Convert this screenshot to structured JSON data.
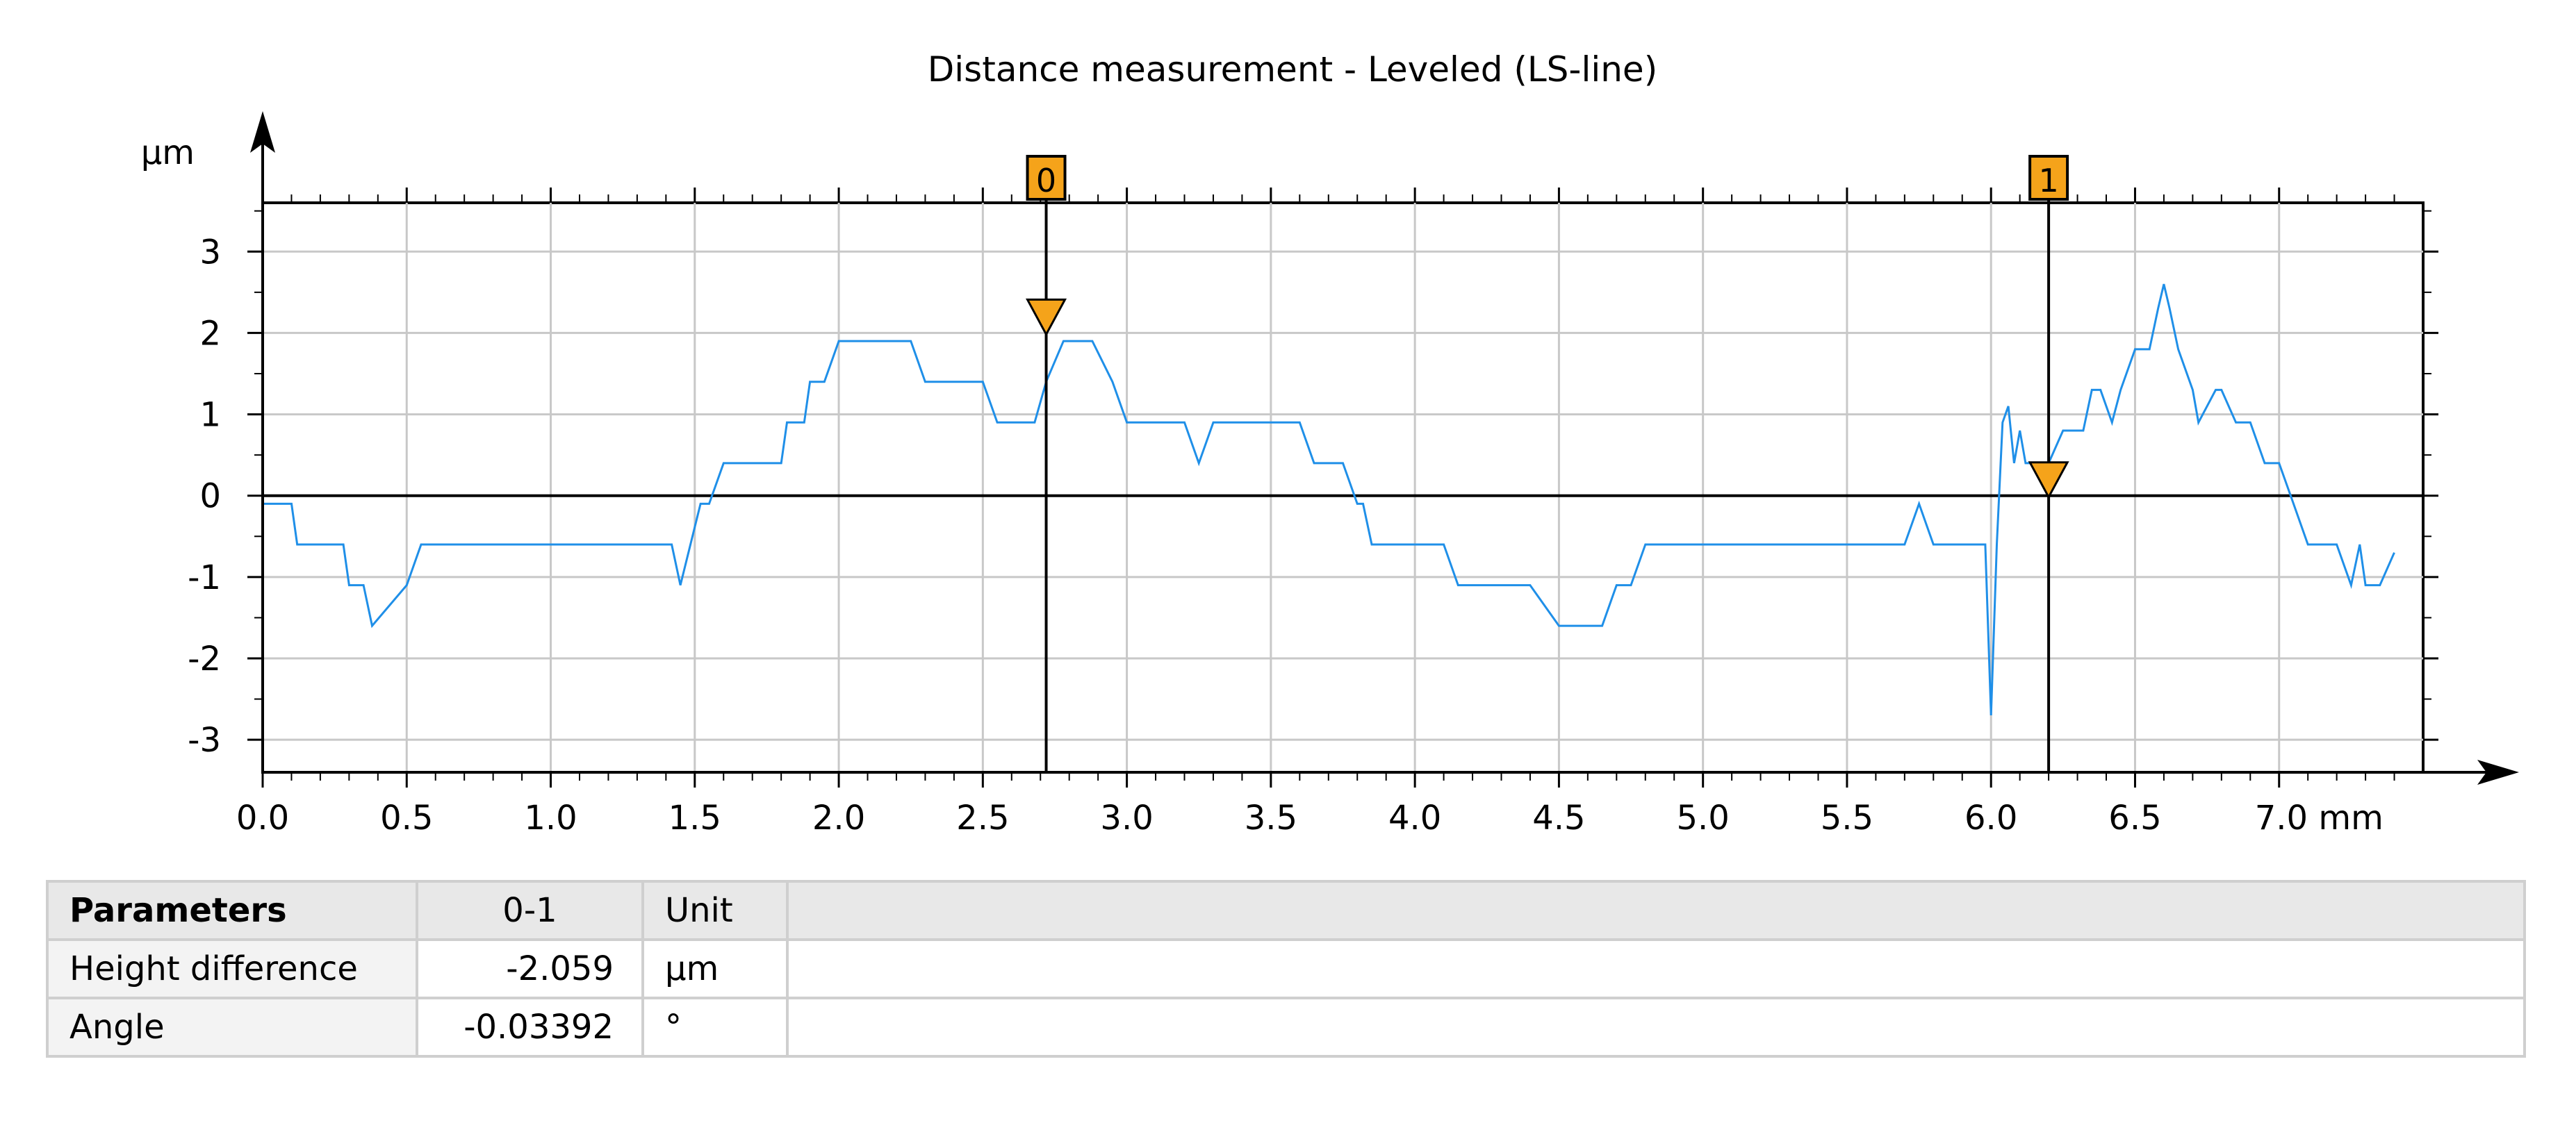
{
  "chart_data": {
    "type": "line",
    "title": "Distance measurement - Leveled (LS-line)",
    "xlabel": "mm",
    "ylabel": "µm",
    "xlim": [
      0.0,
      7.5
    ],
    "ylim": [
      -3.4,
      3.6
    ],
    "x_ticks": [
      0.0,
      0.5,
      1.0,
      1.5,
      2.0,
      2.5,
      3.0,
      3.5,
      4.0,
      4.5,
      5.0,
      5.5,
      6.0,
      6.5,
      7.0
    ],
    "x_tick_labels": [
      "0.0",
      "0.5",
      "1.0",
      "1.5",
      "2.0",
      "2.5",
      "3.0",
      "3.5",
      "4.0",
      "4.5",
      "5.0",
      "5.5",
      "6.0",
      "6.5",
      "7.0 mm"
    ],
    "y_ticks": [
      3,
      2,
      1,
      0,
      -1,
      -2,
      -3
    ],
    "y_tick_labels": [
      "3",
      "2",
      "1",
      "0",
      "-1",
      "-2",
      "-3"
    ],
    "grid": true,
    "series": [
      {
        "color": "#1f8fe8",
        "x": [
          0.0,
          0.1,
          0.12,
          0.28,
          0.3,
          0.35,
          0.38,
          0.5,
          0.55,
          0.7,
          1.0,
          1.2,
          1.38,
          1.42,
          1.45,
          1.52,
          1.55,
          1.6,
          1.7,
          1.8,
          1.82,
          1.88,
          1.9,
          1.95,
          2.0,
          2.1,
          2.25,
          2.3,
          2.45,
          2.5,
          2.55,
          2.62,
          2.68,
          2.72,
          2.78,
          2.82,
          2.88,
          2.95,
          3.0,
          3.1,
          3.2,
          3.25,
          3.3,
          3.35,
          3.5,
          3.6,
          3.65,
          3.75,
          3.8,
          3.82,
          3.85,
          3.9,
          4.0,
          4.1,
          4.15,
          4.25,
          4.3,
          4.4,
          4.5,
          4.55,
          4.6,
          4.65,
          4.7,
          4.75,
          4.8,
          4.9,
          5.0,
          5.1,
          5.2,
          5.3,
          5.4,
          5.5,
          5.6,
          5.7,
          5.75,
          5.8,
          5.9,
          5.98,
          6.0,
          6.02,
          6.04,
          6.06,
          6.08,
          6.1,
          6.12,
          6.15,
          6.2,
          6.25,
          6.3,
          6.32,
          6.35,
          6.38,
          6.42,
          6.45,
          6.5,
          6.55,
          6.58,
          6.6,
          6.62,
          6.65,
          6.7,
          6.72,
          6.78,
          6.8,
          6.85,
          6.88,
          6.9,
          6.95,
          7.0,
          7.05,
          7.1,
          7.15,
          7.2,
          7.25,
          7.28,
          7.3,
          7.35,
          7.4
        ],
        "y": [
          -0.1,
          -0.1,
          -0.6,
          -0.6,
          -1.1,
          -1.1,
          -1.6,
          -1.1,
          -0.6,
          -0.6,
          -0.6,
          -0.6,
          -0.6,
          -0.6,
          -1.1,
          -0.1,
          -0.1,
          0.4,
          0.4,
          0.4,
          0.9,
          0.9,
          1.4,
          1.4,
          1.9,
          1.9,
          1.9,
          1.4,
          1.4,
          1.4,
          0.9,
          0.9,
          0.9,
          1.4,
          1.9,
          1.9,
          1.9,
          1.4,
          0.9,
          0.9,
          0.9,
          0.4,
          0.9,
          0.9,
          0.9,
          0.9,
          0.4,
          0.4,
          -0.1,
          -0.1,
          -0.6,
          -0.6,
          -0.6,
          -0.6,
          -1.1,
          -1.1,
          -1.1,
          -1.1,
          -1.6,
          -1.6,
          -1.6,
          -1.6,
          -1.1,
          -1.1,
          -0.6,
          -0.6,
          -0.6,
          -0.6,
          -0.6,
          -0.6,
          -0.6,
          -0.6,
          -0.6,
          -0.6,
          -0.1,
          -0.6,
          -0.6,
          -0.6,
          -2.7,
          -0.6,
          0.9,
          1.1,
          0.4,
          0.8,
          0.4,
          0.4,
          0.4,
          0.8,
          0.8,
          0.8,
          1.3,
          1.3,
          0.9,
          1.3,
          1.8,
          1.8,
          2.3,
          2.6,
          2.3,
          1.8,
          1.3,
          0.9,
          1.3,
          1.3,
          0.9,
          0.9,
          0.9,
          0.4,
          0.4,
          -0.1,
          -0.6,
          -0.6,
          -0.6,
          -1.1,
          -0.6,
          -1.1,
          -1.1,
          -0.7
        ]
      }
    ],
    "markers": [
      {
        "label": "0",
        "x": 2.72,
        "y": 2.0
      },
      {
        "label": "1",
        "x": 6.2,
        "y": 0.0
      }
    ]
  },
  "table": {
    "header": {
      "name": "Parameters",
      "value": "0-1",
      "unit": "Unit"
    },
    "rows": [
      {
        "name": "Height difference",
        "value": "-2.059",
        "unit": "µm"
      },
      {
        "name": "Angle",
        "value": "-0.03392",
        "unit": "°"
      }
    ]
  },
  "colors": {
    "series": "#1f8fe8",
    "marker_fill": "#f5a31a",
    "grid": "#c8c8c8",
    "axis": "#000000"
  }
}
